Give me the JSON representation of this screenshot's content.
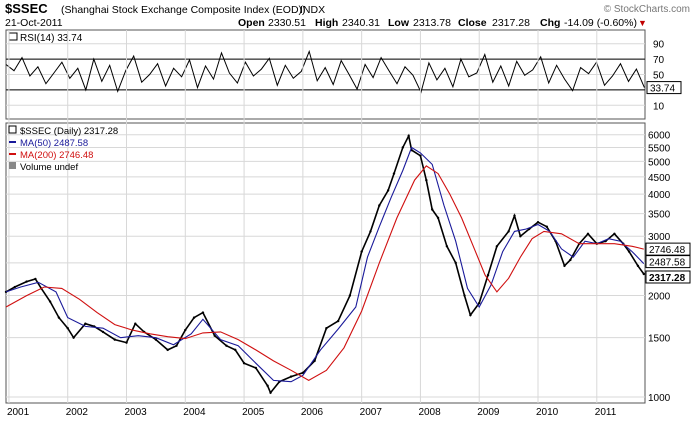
{
  "header": {
    "symbol": "$SSEC",
    "name": "(Shanghai Stock Exchange Composite Index (EOD))",
    "exchange": "INDX",
    "watermark": "© StockCharts.com",
    "date": "21-Oct-2011",
    "open_label": "Open",
    "open_value": "2330.51",
    "high_label": "High",
    "high_value": "2340.31",
    "low_label": "Low",
    "low_value": "2313.78",
    "close_label": "Close",
    "close_value": "2317.28",
    "chg_label": "Chg",
    "chg_value": "-14.09 (-0.60%)",
    "chg_arrow": "▼"
  },
  "colors": {
    "price": "#000000",
    "ma50": "#1a1a9a",
    "ma200": "#d01010",
    "rsi": "#000000",
    "grid": "#d8d8d8",
    "border": "#555555",
    "negative": "#c00000",
    "volume": "#888888"
  },
  "chart_data": [
    {
      "type": "line",
      "panel": "rsi",
      "legend": "RSI(14) 33.74",
      "ylim": [
        0,
        100
      ],
      "yticks": [
        "90",
        "70",
        "50",
        "30",
        "10"
      ],
      "ytick_values": [
        90,
        70,
        50,
        30,
        10
      ],
      "ref_lines": [
        70,
        30
      ],
      "last_value": "33.74",
      "x_start": 2000.95,
      "x_end": 2011.81,
      "series": [
        {
          "name": "RSI(14)",
          "values": [
            63,
            55,
            72,
            48,
            60,
            38,
            52,
            66,
            45,
            58,
            30,
            70,
            41,
            62,
            28,
            55,
            74,
            40,
            50,
            64,
            35,
            58,
            47,
            69,
            33,
            61,
            44,
            78,
            52,
            39,
            66,
            48,
            57,
            71,
            36,
            62,
            45,
            54,
            80,
            42,
            59,
            37,
            68,
            50,
            31,
            63,
            46,
            72,
            55,
            38,
            60,
            49,
            27,
            65,
            43,
            58,
            34,
            70,
            47,
            52,
            76,
            40,
            61,
            35,
            67,
            49,
            56,
            73,
            39,
            62,
            44,
            29,
            59,
            51,
            66,
            36,
            48,
            64,
            41,
            57,
            33
          ]
        }
      ]
    },
    {
      "type": "line",
      "panel": "price",
      "scale": "log",
      "legend": [
        {
          "label": "$SSEC (Daily) 2317.28",
          "key": "price"
        },
        {
          "label": "MA(50) 2487.58",
          "key": "ma50"
        },
        {
          "label": "MA(200) 2746.48",
          "key": "ma200"
        },
        {
          "label": "Volume undef",
          "key": "volume"
        }
      ],
      "ylim": [
        960,
        6500
      ],
      "yticks": [
        "6000",
        "5500",
        "5000",
        "4500",
        "4000",
        "3500",
        "3000",
        "2500",
        "2000",
        "1500",
        "1000"
      ],
      "ytick_values": [
        6000,
        5500,
        5000,
        4500,
        4000,
        3500,
        3000,
        2500,
        2000,
        1500,
        1000
      ],
      "xticks": [
        "2001",
        "2002",
        "2003",
        "2004",
        "2005",
        "2006",
        "2007",
        "2008",
        "2009",
        "2010",
        "2011"
      ],
      "xtick_values": [
        2001,
        2002,
        2003,
        2004,
        2005,
        2006,
        2007,
        2008,
        2009,
        2010,
        2011
      ],
      "xlim": [
        2000.95,
        2011.82
      ],
      "value_tags": [
        {
          "text": "2746.48",
          "value": 2746.48,
          "bold": false
        },
        {
          "text": "2487.58",
          "value": 2487.58,
          "bold": false
        },
        {
          "text": "2317.28",
          "value": 2317.28,
          "bold": true
        }
      ],
      "series": [
        {
          "name": "$SSEC (Daily)",
          "x": [
            2000.95,
            2001.1,
            2001.3,
            2001.45,
            2001.55,
            2001.7,
            2001.85,
            2002.0,
            2002.1,
            2002.3,
            2002.45,
            2002.6,
            2002.8,
            2003.0,
            2003.15,
            2003.3,
            2003.5,
            2003.7,
            2003.85,
            2004.0,
            2004.15,
            2004.3,
            2004.5,
            2004.7,
            2004.85,
            2005.0,
            2005.2,
            2005.4,
            2005.45,
            2005.6,
            2005.8,
            2006.0,
            2006.2,
            2006.4,
            2006.6,
            2006.8,
            2007.0,
            2007.15,
            2007.3,
            2007.45,
            2007.55,
            2007.7,
            2007.8,
            2007.85,
            2008.0,
            2008.1,
            2008.2,
            2008.3,
            2008.45,
            2008.6,
            2008.75,
            2008.85,
            2009.0,
            2009.15,
            2009.3,
            2009.5,
            2009.6,
            2009.7,
            2009.85,
            2010.0,
            2010.15,
            2010.3,
            2010.45,
            2010.55,
            2010.7,
            2010.85,
            2011.0,
            2011.15,
            2011.3,
            2011.45,
            2011.55,
            2011.7,
            2011.8
          ],
          "values": [
            2050,
            2120,
            2200,
            2240,
            2100,
            1920,
            1720,
            1600,
            1500,
            1650,
            1620,
            1560,
            1480,
            1450,
            1650,
            1560,
            1480,
            1380,
            1420,
            1580,
            1720,
            1780,
            1520,
            1420,
            1380,
            1260,
            1220,
            1080,
            1030,
            1110,
            1150,
            1180,
            1280,
            1600,
            1680,
            2000,
            2700,
            3100,
            3700,
            4100,
            4600,
            5500,
            5950,
            5400,
            5200,
            4400,
            3600,
            3400,
            2800,
            2500,
            2000,
            1750,
            1900,
            2300,
            2800,
            3100,
            3450,
            3000,
            3150,
            3300,
            3200,
            2900,
            2450,
            2550,
            2850,
            3050,
            2850,
            2900,
            3050,
            2850,
            2700,
            2450,
            2317
          ]
        },
        {
          "name": "MA(50)",
          "x": [
            2000.95,
            2001.2,
            2001.5,
            2001.8,
            2002.0,
            2002.3,
            2002.6,
            2002.9,
            2003.2,
            2003.5,
            2003.8,
            2004.1,
            2004.3,
            2004.6,
            2004.9,
            2005.2,
            2005.5,
            2005.8,
            2006.0,
            2006.3,
            2006.6,
            2006.9,
            2007.1,
            2007.3,
            2007.5,
            2007.7,
            2007.85,
            2008.0,
            2008.2,
            2008.4,
            2008.6,
            2008.8,
            2009.0,
            2009.2,
            2009.4,
            2009.6,
            2009.8,
            2010.0,
            2010.2,
            2010.4,
            2010.6,
            2010.8,
            2011.0,
            2011.2,
            2011.4,
            2011.6,
            2011.8
          ],
          "values": [
            2050,
            2120,
            2190,
            2050,
            1720,
            1620,
            1600,
            1500,
            1520,
            1500,
            1430,
            1540,
            1700,
            1480,
            1420,
            1260,
            1120,
            1110,
            1160,
            1380,
            1590,
            1850,
            2600,
            3200,
            3900,
            4700,
            5500,
            5300,
            4900,
            3700,
            2900,
            2100,
            1850,
            2150,
            2700,
            3100,
            3150,
            3250,
            3100,
            2750,
            2600,
            2900,
            2850,
            2950,
            2900,
            2700,
            2487.58
          ]
        },
        {
          "name": "MA(200)",
          "x": [
            2000.95,
            2001.3,
            2001.6,
            2001.9,
            2002.2,
            2002.5,
            2002.8,
            2003.1,
            2003.4,
            2003.7,
            2004.0,
            2004.3,
            2004.6,
            2004.9,
            2005.2,
            2005.5,
            2005.8,
            2006.1,
            2006.4,
            2006.7,
            2007.0,
            2007.3,
            2007.6,
            2007.9,
            2008.1,
            2008.3,
            2008.5,
            2008.7,
            2008.9,
            2009.1,
            2009.3,
            2009.5,
            2009.7,
            2009.9,
            2010.1,
            2010.4,
            2010.7,
            2011.0,
            2011.3,
            2011.6,
            2011.8
          ],
          "values": [
            1850,
            2000,
            2120,
            2100,
            1950,
            1780,
            1640,
            1580,
            1540,
            1510,
            1490,
            1550,
            1560,
            1480,
            1380,
            1280,
            1200,
            1120,
            1200,
            1400,
            1800,
            2500,
            3400,
            4400,
            4850,
            4600,
            4000,
            3400,
            2800,
            2300,
            2050,
            2250,
            2600,
            2950,
            3100,
            3050,
            2850,
            2850,
            2850,
            2800,
            2746.48
          ]
        }
      ]
    }
  ]
}
